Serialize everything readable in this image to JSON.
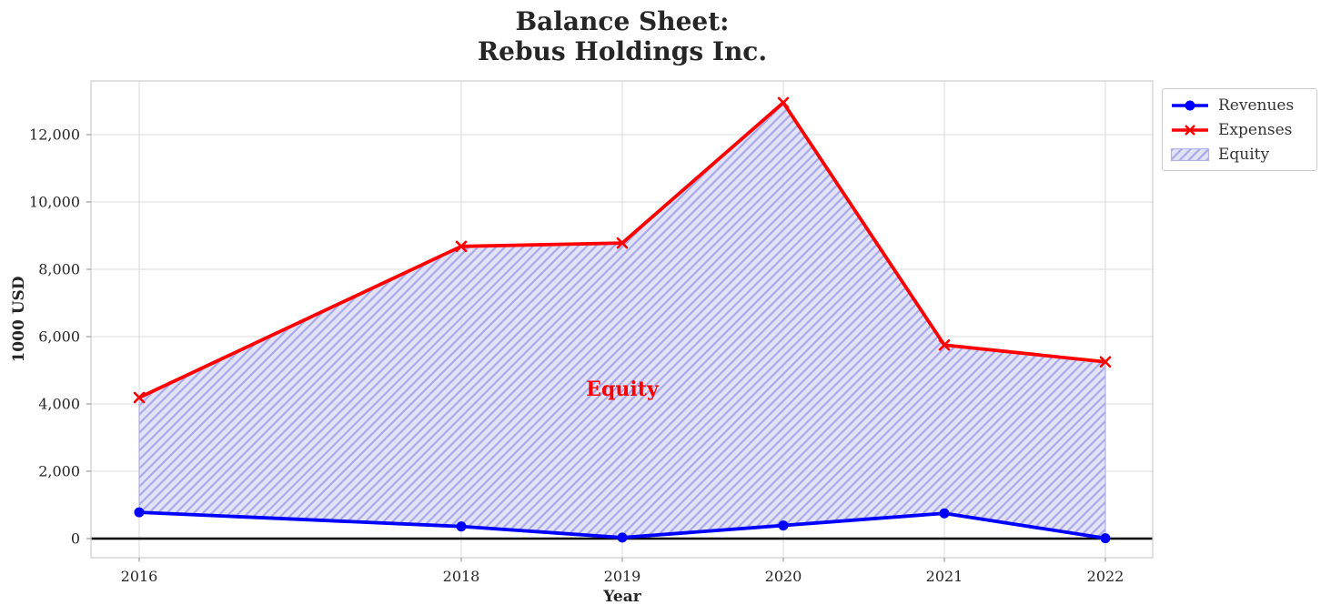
{
  "chart_data": {
    "type": "line",
    "title_line1": "Balance Sheet:",
    "title_line2": "Rebus Holdings Inc.",
    "xlabel": "Year",
    "ylabel": "1000 USD",
    "x": [
      2016,
      2018,
      2019,
      2020,
      2021,
      2022
    ],
    "x_tick_labels": [
      "2016",
      "2018",
      "2019",
      "2020",
      "2021",
      "2022"
    ],
    "y_ticks": [
      0,
      2000,
      4000,
      6000,
      8000,
      10000,
      12000
    ],
    "y_tick_labels": [
      "0",
      "2,000",
      "4,000",
      "6,000",
      "8,000",
      "10,000",
      "12,000"
    ],
    "xlim": [
      2015.7,
      2022.3
    ],
    "ylim": [
      -540,
      13595
    ],
    "grid": true,
    "zero_line": true,
    "zero_line_color": "#000000",
    "series": [
      {
        "name": "Revenues",
        "color": "#0000ff",
        "marker": "o",
        "values": [
          780,
          360,
          30,
          390,
          750,
          10
        ]
      },
      {
        "name": "Expenses",
        "color": "#ff0000",
        "marker": "x",
        "values": [
          4190,
          8680,
          8780,
          12950,
          5750,
          5250
        ]
      }
    ],
    "equity": {
      "label": "Equity",
      "type": "fill_between",
      "between": [
        "Revenues",
        "Expenses"
      ],
      "fill_color": "#dcdcf5",
      "hatch_color": "#a9a9ea",
      "edge_color": "#b3b3e6",
      "hatch": "//"
    },
    "annotation": {
      "text": "Equity",
      "x": 2019,
      "y": 4400,
      "color": "#ff0000"
    },
    "legend": {
      "position": "upper right outside plot",
      "entries": [
        "Revenues",
        "Expenses",
        "Equity"
      ]
    }
  }
}
